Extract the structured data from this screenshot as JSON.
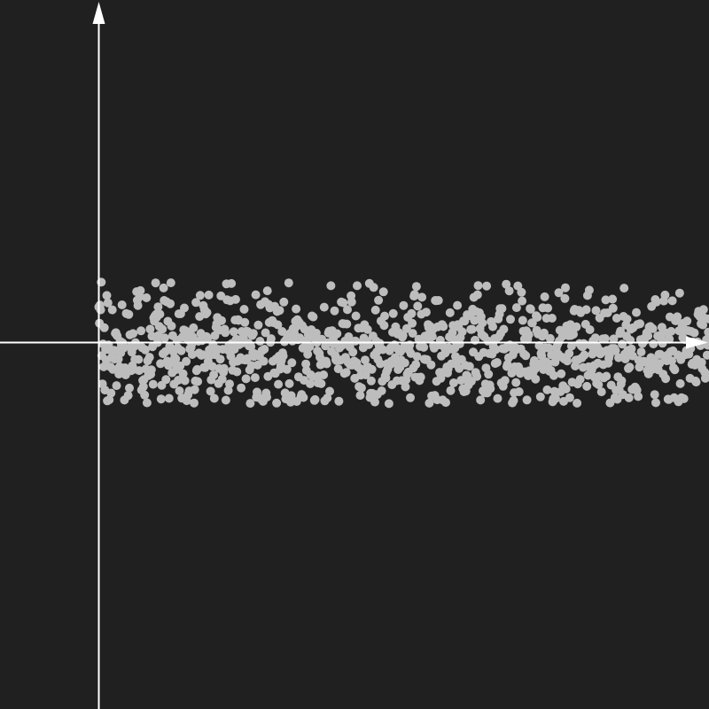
{
  "chart_data": {
    "type": "scatter",
    "title": "",
    "xlabel": "",
    "ylabel": "",
    "xlim": [
      0,
      1000
    ],
    "ylim": [
      -5.7,
      5.3
    ],
    "grid": false,
    "legend": "none",
    "point_count": 1000,
    "x_range": [
      0,
      1000
    ],
    "y_mean": -0.1,
    "y_std": 0.45,
    "y_min": -0.95,
    "y_max": 0.95,
    "point_seed": 7,
    "colors": {
      "background": "#202020",
      "axes": "#ffffff",
      "points": "#bdbdbd"
    }
  }
}
